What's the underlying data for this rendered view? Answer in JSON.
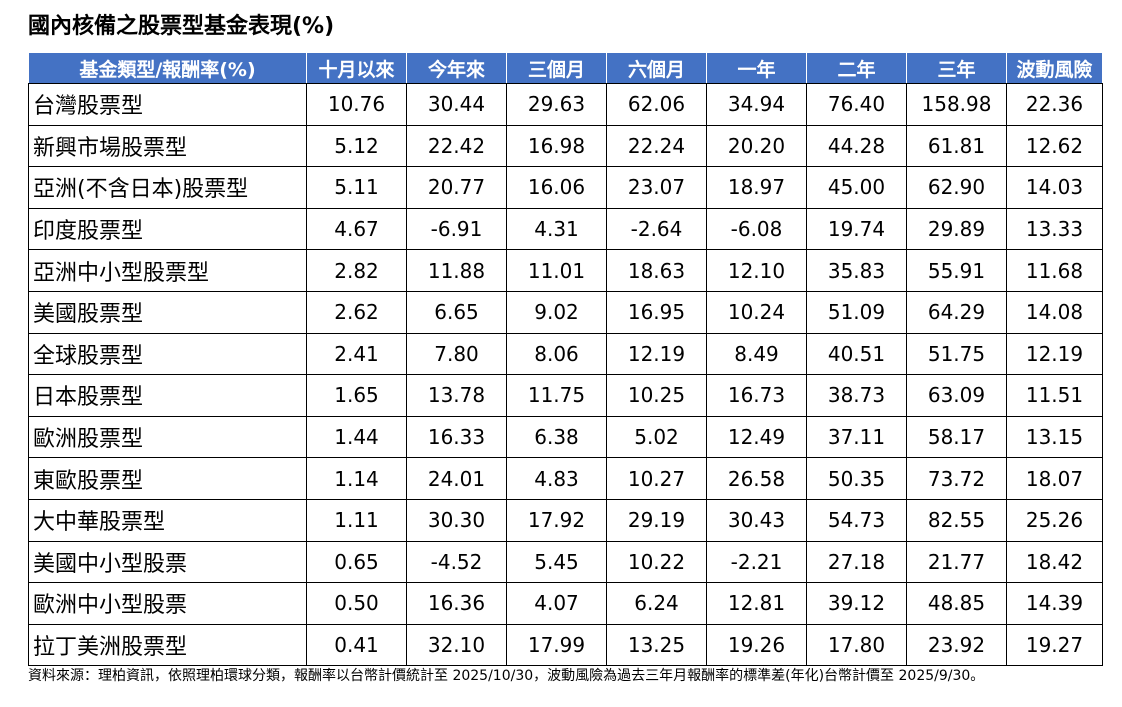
{
  "title": "國內核備之股票型基金表現(%)",
  "table": {
    "headers": [
      "基金類型/報酬率(%)",
      "十月以來",
      "今年來",
      "三個月",
      "六個月",
      "一年",
      "二年",
      "三年",
      "波動風險"
    ],
    "rows": [
      [
        "台灣股票型",
        "10.76",
        "30.44",
        "29.63",
        "62.06",
        "34.94",
        "76.40",
        "158.98",
        "22.36"
      ],
      [
        "新興市場股票型",
        "5.12",
        "22.42",
        "16.98",
        "22.24",
        "20.20",
        "44.28",
        "61.81",
        "12.62"
      ],
      [
        "亞洲(不含日本)股票型",
        "5.11",
        "20.77",
        "16.06",
        "23.07",
        "18.97",
        "45.00",
        "62.90",
        "14.03"
      ],
      [
        "印度股票型",
        "4.67",
        "-6.91",
        "4.31",
        "-2.64",
        "-6.08",
        "19.74",
        "29.89",
        "13.33"
      ],
      [
        "亞洲中小型股票型",
        "2.82",
        "11.88",
        "11.01",
        "18.63",
        "12.10",
        "35.83",
        "55.91",
        "11.68"
      ],
      [
        "美國股票型",
        "2.62",
        "6.65",
        "9.02",
        "16.95",
        "10.24",
        "51.09",
        "64.29",
        "14.08"
      ],
      [
        "全球股票型",
        "2.41",
        "7.80",
        "8.06",
        "12.19",
        "8.49",
        "40.51",
        "51.75",
        "12.19"
      ],
      [
        "日本股票型",
        "1.65",
        "13.78",
        "11.75",
        "10.25",
        "16.73",
        "38.73",
        "63.09",
        "11.51"
      ],
      [
        "歐洲股票型",
        "1.44",
        "16.33",
        "6.38",
        "5.02",
        "12.49",
        "37.11",
        "58.17",
        "13.15"
      ],
      [
        "東歐股票型",
        "1.14",
        "24.01",
        "4.83",
        "10.27",
        "26.58",
        "50.35",
        "73.72",
        "18.07"
      ],
      [
        "大中華股票型",
        "1.11",
        "30.30",
        "17.92",
        "29.19",
        "30.43",
        "54.73",
        "82.55",
        "25.26"
      ],
      [
        "美國中小型股票",
        "0.65",
        "-4.52",
        "5.45",
        "10.22",
        "-2.21",
        "27.18",
        "21.77",
        "18.42"
      ],
      [
        "歐洲中小型股票",
        "0.50",
        "16.36",
        "4.07",
        "6.24",
        "12.81",
        "39.12",
        "48.85",
        "14.39"
      ],
      [
        "拉丁美洲股票型",
        "0.41",
        "32.10",
        "17.99",
        "13.25",
        "19.26",
        "17.80",
        "23.92",
        "19.27"
      ]
    ]
  },
  "note": "資料來源：理柏資訊，依照理柏環球分類，報酬率以台幣計價統計至 2025/10/30，波動風險為過去三年月報酬率的標準差(年化)台幣計價至 2025/9/30。",
  "colors": {
    "header_bg": "#4472c4"
  }
}
